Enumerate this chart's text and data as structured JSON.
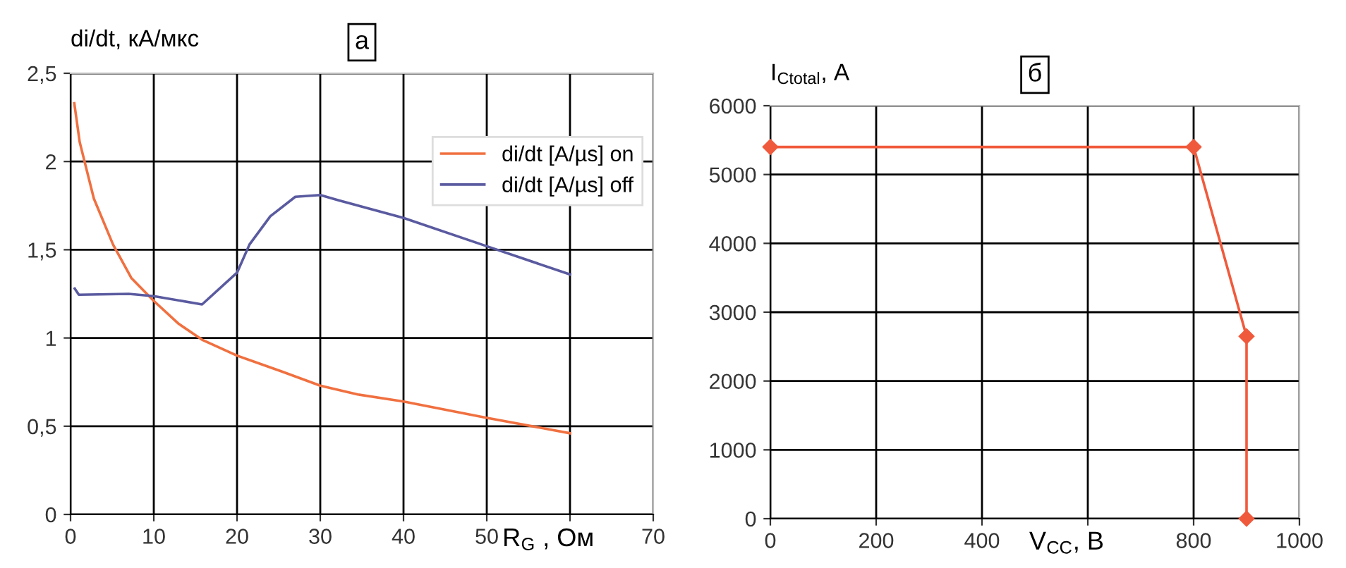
{
  "chart_data": [
    {
      "type": "line",
      "title": "а",
      "ylabel": "di/dt, кА/мкс",
      "xlabel": "R$_{G}$ , Ом",
      "xlim": [
        0,
        70
      ],
      "xticks": [
        0,
        10,
        20,
        30,
        40,
        50,
        {
          "value": 60,
          "label": null
        },
        70
      ],
      "ylim": [
        0,
        2.5
      ],
      "yticks": [
        0,
        {
          "value": 0.5,
          "label": "0,5"
        },
        1,
        {
          "value": 1.5,
          "label": "1,5"
        },
        2,
        {
          "value": 2.5,
          "label": "2,5"
        }
      ],
      "grid": true,
      "legend": "top right",
      "marker": "none",
      "line_style": "solid",
      "series": [
        {
          "name": "di/dt [A/µs] on",
          "color": "#f07040",
          "x": [
            0.45,
            1.1,
            2.8,
            5.1,
            7.3,
            10,
            13,
            15.8,
            20,
            25.4,
            30,
            34.5,
            40,
            49.7,
            60
          ],
          "values": [
            2.33,
            2.11,
            1.79,
            1.53,
            1.34,
            1.21,
            1.08,
            0.99,
            0.9,
            0.81,
            0.73,
            0.68,
            0.64,
            0.55,
            0.46
          ]
        },
        {
          "name": "di/dt [A/µs] off",
          "color": "#5a5aa0",
          "x": [
            0.5,
            1,
            7,
            10,
            15.8,
            20,
            21.5,
            24,
            27,
            30,
            32.2,
            40,
            50,
            60
          ],
          "values": [
            1.28,
            1.245,
            1.25,
            1.237,
            1.19,
            1.37,
            1.53,
            1.69,
            1.8,
            1.81,
            1.78,
            1.68,
            1.52,
            1.36
          ]
        }
      ]
    },
    {
      "type": "line",
      "title": "б",
      "ylabel": "I$_{Ctotal}$, А",
      "xlabel": "V$_{CC}$, В",
      "xlim": [
        0,
        1000
      ],
      "xticks": [
        0,
        200,
        400,
        {
          "value": 600,
          "label": null
        },
        800,
        1000
      ],
      "ylim": [
        0,
        6000
      ],
      "yticks": [
        0,
        1000,
        2000,
        3000,
        4000,
        5000,
        6000
      ],
      "grid": true,
      "marker": "diamond",
      "line_style": "solid",
      "series": [
        {
          "color": "#f05a3c",
          "x": [
            0,
            800,
            900,
            900
          ],
          "values": [
            5400,
            5400,
            2650,
            0
          ]
        }
      ]
    }
  ]
}
